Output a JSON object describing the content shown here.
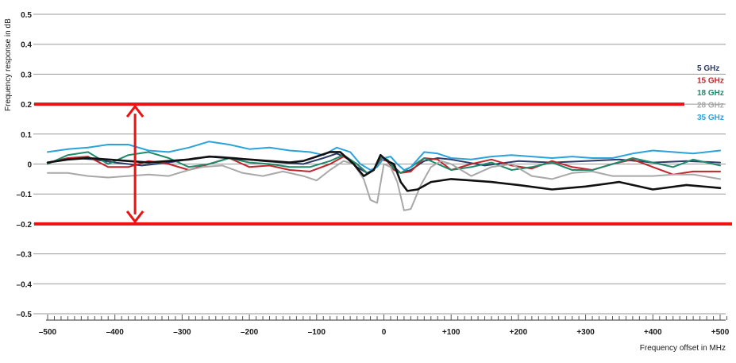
{
  "chart_data": {
    "type": "line",
    "xlabel": "Frequency offset in MHz",
    "ylabel": "Frequency response in dB",
    "xlim": [
      -500,
      510
    ],
    "ylim": [
      -0.5,
      0.5
    ],
    "x_ticks": [
      -500,
      -400,
      -300,
      -200,
      -100,
      0,
      100,
      200,
      300,
      400,
      500
    ],
    "x_tick_labels": [
      "–500",
      "–400",
      "–300",
      "–200",
      "–100",
      "0",
      "+100",
      "+200",
      "+300",
      "+400",
      "+500"
    ],
    "y_ticks": [
      0.5,
      0.4,
      0.3,
      0.2,
      0.1,
      0,
      -0.1,
      -0.2,
      -0.3,
      -0.4,
      -0.5
    ],
    "y_tick_labels": [
      "0.5",
      "0.4",
      "0.3",
      "0.2",
      "0.1",
      "0",
      "–0.1",
      "–0.2",
      "–0.3",
      "–0.4",
      "–0.5"
    ],
    "grid": true,
    "legend_position": "right",
    "series": [
      {
        "name": "5 GHz",
        "color": "#2b3a6b",
        "x": [
          -500,
          -460,
          -430,
          -400,
          -360,
          -320,
          -280,
          -250,
          -220,
          -180,
          -150,
          -120,
          -90,
          -70,
          -55,
          -40,
          -25,
          -15,
          -5,
          5,
          15,
          25,
          40,
          60,
          80,
          100,
          150,
          200,
          250,
          300,
          350,
          400,
          450,
          500
        ],
        "y": [
          0.005,
          0.02,
          0.015,
          0.005,
          -0.005,
          0.005,
          0.02,
          0.025,
          0.02,
          0.01,
          0.005,
          0.0,
          0.02,
          0.035,
          0.02,
          -0.01,
          -0.03,
          -0.02,
          0.02,
          0.015,
          -0.01,
          -0.03,
          -0.02,
          0.01,
          0.02,
          0.015,
          -0.005,
          0.01,
          0.005,
          0.01,
          0.015,
          0.005,
          0.01,
          0.005
        ]
      },
      {
        "name": "15 GHz",
        "color": "#c0252b",
        "x": [
          -500,
          -470,
          -440,
          -410,
          -380,
          -350,
          -320,
          -290,
          -260,
          -230,
          -200,
          -170,
          -140,
          -110,
          -80,
          -60,
          -40,
          -25,
          -15,
          -5,
          5,
          15,
          25,
          40,
          60,
          80,
          100,
          130,
          160,
          190,
          220,
          250,
          280,
          310,
          340,
          370,
          400,
          430,
          460,
          500
        ],
        "y": [
          0.005,
          0.02,
          0.025,
          -0.01,
          -0.01,
          0.01,
          0.0,
          -0.02,
          0.0,
          0.02,
          -0.01,
          -0.005,
          -0.02,
          -0.025,
          0.0,
          0.025,
          0.0,
          -0.03,
          -0.02,
          0.015,
          0.01,
          -0.02,
          -0.03,
          -0.025,
          0.02,
          0.015,
          -0.02,
          0.0,
          0.015,
          -0.005,
          -0.015,
          0.01,
          -0.01,
          -0.02,
          0.0,
          0.015,
          -0.01,
          -0.035,
          -0.025,
          -0.025
        ]
      },
      {
        "name": "18 GHz",
        "color": "#1f8a6a",
        "x": [
          -500,
          -470,
          -440,
          -410,
          -380,
          -350,
          -320,
          -290,
          -260,
          -230,
          -200,
          -170,
          -140,
          -110,
          -80,
          -60,
          -40,
          -25,
          -15,
          -5,
          5,
          15,
          25,
          40,
          60,
          80,
          100,
          130,
          160,
          190,
          220,
          250,
          280,
          310,
          340,
          370,
          400,
          430,
          460,
          500
        ],
        "y": [
          0.0,
          0.03,
          0.04,
          0.0,
          0.03,
          0.04,
          0.02,
          -0.01,
          0.0,
          0.02,
          0.005,
          0.0,
          -0.01,
          -0.01,
          0.01,
          0.03,
          0.0,
          -0.03,
          -0.02,
          0.02,
          0.015,
          -0.015,
          -0.03,
          -0.01,
          0.02,
          0.0,
          -0.02,
          -0.01,
          0.005,
          -0.02,
          -0.01,
          0.005,
          -0.02,
          -0.02,
          0.0,
          0.02,
          0.005,
          -0.01,
          0.015,
          -0.005
        ]
      },
      {
        "name": "28 GHz",
        "color": "#a8a8a8",
        "x": [
          -500,
          -470,
          -440,
          -410,
          -380,
          -350,
          -320,
          -290,
          -270,
          -240,
          -210,
          -180,
          -150,
          -120,
          -100,
          -80,
          -60,
          -45,
          -30,
          -20,
          -10,
          0,
          10,
          20,
          30,
          40,
          55,
          70,
          85,
          100,
          130,
          160,
          190,
          220,
          250,
          280,
          310,
          340,
          370,
          400,
          430,
          460,
          500
        ],
        "y": [
          -0.03,
          -0.03,
          -0.04,
          -0.045,
          -0.04,
          -0.035,
          -0.04,
          -0.02,
          -0.01,
          -0.005,
          -0.03,
          -0.04,
          -0.025,
          -0.04,
          -0.055,
          -0.02,
          0.01,
          0.0,
          -0.05,
          -0.12,
          -0.13,
          0.0,
          -0.01,
          -0.06,
          -0.155,
          -0.15,
          -0.07,
          -0.01,
          0.01,
          0.0,
          -0.04,
          -0.01,
          0.0,
          -0.04,
          -0.05,
          -0.03,
          -0.025,
          -0.04,
          -0.04,
          -0.04,
          -0.035,
          -0.035,
          -0.05
        ]
      },
      {
        "name": "35 GHz",
        "color": "#2aa3dc",
        "x": [
          -500,
          -470,
          -440,
          -410,
          -380,
          -350,
          -320,
          -290,
          -260,
          -230,
          -200,
          -170,
          -140,
          -110,
          -90,
          -70,
          -50,
          -35,
          -20,
          -10,
          0,
          10,
          20,
          30,
          40,
          60,
          80,
          100,
          130,
          160,
          190,
          220,
          250,
          280,
          310,
          340,
          370,
          400,
          430,
          460,
          500
        ],
        "y": [
          0.04,
          0.05,
          0.055,
          0.065,
          0.065,
          0.045,
          0.04,
          0.055,
          0.075,
          0.065,
          0.05,
          0.055,
          0.045,
          0.04,
          0.03,
          0.055,
          0.04,
          0.0,
          -0.02,
          -0.01,
          0.02,
          0.025,
          0.0,
          -0.02,
          -0.01,
          0.04,
          0.035,
          0.02,
          0.015,
          0.025,
          0.03,
          0.025,
          0.02,
          0.025,
          0.02,
          0.02,
          0.035,
          0.045,
          0.04,
          0.035,
          0.045
        ]
      },
      {
        "color": "#111111",
        "x": [
          -500,
          -470,
          -440,
          -410,
          -380,
          -350,
          -320,
          -290,
          -260,
          -230,
          -200,
          -170,
          -140,
          -120,
          -100,
          -80,
          -65,
          -45,
          -30,
          -15,
          -5,
          5,
          15,
          25,
          35,
          50,
          70,
          100,
          130,
          160,
          200,
          250,
          300,
          350,
          400,
          450,
          500
        ],
        "y": [
          0.005,
          0.015,
          0.02,
          0.015,
          0.01,
          0.005,
          0.01,
          0.015,
          0.025,
          0.02,
          0.015,
          0.01,
          0.005,
          0.01,
          0.025,
          0.04,
          0.04,
          0.0,
          -0.04,
          -0.02,
          0.03,
          0.01,
          0.0,
          -0.06,
          -0.09,
          -0.085,
          -0.06,
          -0.05,
          -0.055,
          -0.06,
          -0.07,
          -0.085,
          -0.075,
          -0.06,
          -0.085,
          -0.07,
          -0.08
        ]
      }
    ],
    "annotations": {
      "upper_limit": 0.2,
      "lower_limit": -0.2,
      "limit_color": "#ee1111",
      "arrow_x": -370
    }
  }
}
